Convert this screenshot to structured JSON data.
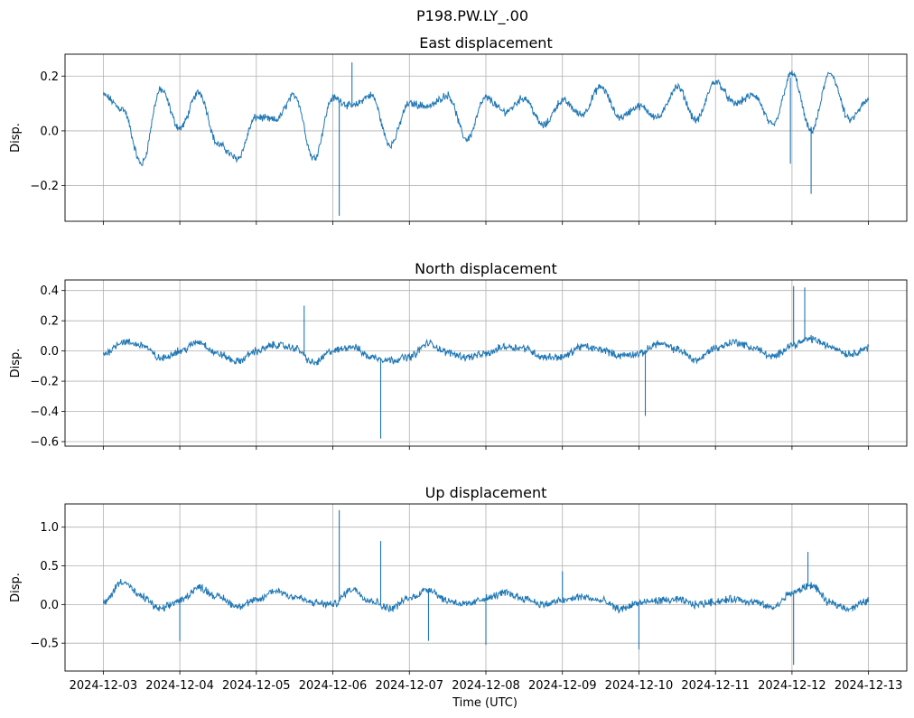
{
  "suptitle": "P198.PW.LY_.00",
  "xlabel": "Time (UTC)",
  "x_ticks": [
    "2024-12-03",
    "2024-12-04",
    "2024-12-05",
    "2024-12-06",
    "2024-12-07",
    "2024-12-08",
    "2024-12-09",
    "2024-12-10",
    "2024-12-11",
    "2024-12-12",
    "2024-12-13"
  ],
  "colors": {
    "line": "#1f77b4",
    "grid": "#b0b0b0",
    "axes": "#000000"
  },
  "chart_data": [
    {
      "type": "line",
      "title": "East displacement",
      "ylabel": "Disp.",
      "ylim": [
        -0.33,
        0.28
      ],
      "yticks": [
        -0.2,
        0.0,
        0.2
      ],
      "ytick_labels": [
        "−0.2",
        "0.0",
        "0.2"
      ],
      "xlim": [
        "2024-12-02T12:00",
        "2024-12-13T12:00"
      ],
      "grid": true,
      "series": [
        {
          "x": [
            "2024-12-03T00:00",
            "2024-12-03T06:00",
            "2024-12-03T12:00",
            "2024-12-03T18:00",
            "2024-12-04T00:00",
            "2024-12-04T06:00",
            "2024-12-04T12:00",
            "2024-12-04T18:00",
            "2024-12-05T00:00",
            "2024-12-05T06:00",
            "2024-12-05T12:00",
            "2024-12-05T18:00",
            "2024-12-06T00:00",
            "2024-12-06T06:00",
            "2024-12-06T12:00",
            "2024-12-06T18:00",
            "2024-12-07T00:00",
            "2024-12-07T06:00",
            "2024-12-07T12:00",
            "2024-12-07T18:00",
            "2024-12-08T00:00",
            "2024-12-08T06:00",
            "2024-12-08T12:00",
            "2024-12-08T18:00",
            "2024-12-09T00:00",
            "2024-12-09T06:00",
            "2024-12-09T12:00",
            "2024-12-09T18:00",
            "2024-12-10T00:00",
            "2024-12-10T06:00",
            "2024-12-10T12:00",
            "2024-12-10T18:00",
            "2024-12-11T00:00",
            "2024-12-11T06:00",
            "2024-12-11T12:00",
            "2024-12-11T18:00",
            "2024-12-12T00:00",
            "2024-12-12T06:00",
            "2024-12-12T12:00",
            "2024-12-12T18:00",
            "2024-12-13T00:00"
          ],
          "y": [
            0.13,
            0.08,
            -0.12,
            0.15,
            0.01,
            0.14,
            -0.05,
            -0.1,
            0.05,
            0.04,
            0.13,
            -0.1,
            0.12,
            0.09,
            0.13,
            -0.05,
            0.1,
            0.09,
            0.13,
            -0.03,
            0.12,
            0.07,
            0.12,
            0.02,
            0.11,
            0.06,
            0.16,
            0.05,
            0.09,
            0.05,
            0.16,
            0.04,
            0.18,
            0.1,
            0.13,
            0.02,
            0.21,
            0.0,
            0.21,
            0.04,
            0.11
          ]
        }
      ],
      "spikes": [
        {
          "x": "2024-12-06T02:00",
          "y": -0.31
        },
        {
          "x": "2024-12-06T06:00",
          "y": 0.25
        },
        {
          "x": "2024-12-12T06:00",
          "y": -0.23
        },
        {
          "x": "2024-12-11T23:30",
          "y": -0.12
        }
      ]
    },
    {
      "type": "line",
      "title": "North displacement",
      "ylabel": "Disp.",
      "ylim": [
        -0.63,
        0.47
      ],
      "yticks": [
        -0.6,
        -0.4,
        -0.2,
        0.0,
        0.2,
        0.4
      ],
      "ytick_labels": [
        "−0.6",
        "−0.4",
        "−0.2",
        "0.0",
        "0.2",
        "0.4"
      ],
      "xlim": [
        "2024-12-02T12:00",
        "2024-12-13T12:00"
      ],
      "grid": true,
      "series": [
        {
          "x": [
            "2024-12-03T00:00",
            "2024-12-03T06:00",
            "2024-12-03T12:00",
            "2024-12-03T18:00",
            "2024-12-04T00:00",
            "2024-12-04T06:00",
            "2024-12-04T12:00",
            "2024-12-04T18:00",
            "2024-12-05T00:00",
            "2024-12-05T06:00",
            "2024-12-05T12:00",
            "2024-12-05T18:00",
            "2024-12-06T00:00",
            "2024-12-06T06:00",
            "2024-12-06T12:00",
            "2024-12-06T18:00",
            "2024-12-07T00:00",
            "2024-12-07T06:00",
            "2024-12-07T12:00",
            "2024-12-07T18:00",
            "2024-12-08T00:00",
            "2024-12-08T06:00",
            "2024-12-08T12:00",
            "2024-12-08T18:00",
            "2024-12-09T00:00",
            "2024-12-09T06:00",
            "2024-12-09T12:00",
            "2024-12-09T18:00",
            "2024-12-10T00:00",
            "2024-12-10T06:00",
            "2024-12-10T12:00",
            "2024-12-10T18:00",
            "2024-12-11T00:00",
            "2024-12-11T06:00",
            "2024-12-11T12:00",
            "2024-12-11T18:00",
            "2024-12-12T00:00",
            "2024-12-12T06:00",
            "2024-12-12T12:00",
            "2024-12-12T18:00",
            "2024-12-13T00:00"
          ],
          "y": [
            -0.02,
            0.06,
            0.04,
            -0.05,
            0.0,
            0.06,
            -0.02,
            -0.07,
            0.0,
            0.04,
            0.02,
            -0.08,
            0.0,
            0.03,
            -0.04,
            -0.06,
            -0.04,
            0.05,
            -0.01,
            -0.04,
            -0.02,
            0.03,
            0.02,
            -0.04,
            -0.04,
            0.03,
            0.01,
            -0.03,
            -0.02,
            0.05,
            0.01,
            -0.06,
            0.02,
            0.06,
            0.02,
            -0.04,
            0.04,
            0.08,
            0.03,
            -0.02,
            0.02
          ]
        }
      ],
      "spikes": [
        {
          "x": "2024-12-05T15:00",
          "y": 0.3
        },
        {
          "x": "2024-12-06T15:00",
          "y": -0.58
        },
        {
          "x": "2024-12-10T02:00",
          "y": -0.43
        },
        {
          "x": "2024-12-12T00:30",
          "y": 0.43
        },
        {
          "x": "2024-12-12T04:00",
          "y": 0.42
        }
      ]
    },
    {
      "type": "line",
      "title": "Up displacement",
      "ylabel": "Disp.",
      "ylim": [
        -0.86,
        1.3
      ],
      "yticks": [
        -0.5,
        0.0,
        0.5,
        1.0
      ],
      "ytick_labels": [
        "−0.5",
        "0.0",
        "0.5",
        "1.0"
      ],
      "xlim": [
        "2024-12-02T12:00",
        "2024-12-13T12:00"
      ],
      "grid": true,
      "series": [
        {
          "x": [
            "2024-12-03T00:00",
            "2024-12-03T06:00",
            "2024-12-03T12:00",
            "2024-12-03T18:00",
            "2024-12-04T00:00",
            "2024-12-04T06:00",
            "2024-12-04T12:00",
            "2024-12-04T18:00",
            "2024-12-05T00:00",
            "2024-12-05T06:00",
            "2024-12-05T12:00",
            "2024-12-05T18:00",
            "2024-12-06T00:00",
            "2024-12-06T06:00",
            "2024-12-06T12:00",
            "2024-12-06T18:00",
            "2024-12-07T00:00",
            "2024-12-07T06:00",
            "2024-12-07T12:00",
            "2024-12-07T18:00",
            "2024-12-08T00:00",
            "2024-12-08T06:00",
            "2024-12-08T12:00",
            "2024-12-08T18:00",
            "2024-12-09T00:00",
            "2024-12-09T06:00",
            "2024-12-09T12:00",
            "2024-12-09T18:00",
            "2024-12-10T00:00",
            "2024-12-10T06:00",
            "2024-12-10T12:00",
            "2024-12-10T18:00",
            "2024-12-11T00:00",
            "2024-12-11T06:00",
            "2024-12-11T12:00",
            "2024-12-11T18:00",
            "2024-12-12T00:00",
            "2024-12-12T06:00",
            "2024-12-12T12:00",
            "2024-12-12T18:00",
            "2024-12-13T00:00"
          ],
          "y": [
            0.02,
            0.3,
            0.1,
            -0.06,
            0.05,
            0.22,
            0.1,
            -0.02,
            0.05,
            0.18,
            0.1,
            0.02,
            0.0,
            0.2,
            0.05,
            -0.05,
            0.08,
            0.2,
            0.05,
            0.0,
            0.08,
            0.15,
            0.08,
            0.0,
            0.05,
            0.1,
            0.05,
            -0.06,
            0.02,
            0.05,
            0.06,
            0.0,
            0.04,
            0.07,
            0.03,
            -0.04,
            0.15,
            0.25,
            0.02,
            -0.05,
            0.05
          ]
        }
      ],
      "spikes": [
        {
          "x": "2024-12-06T02:00",
          "y": 1.22
        },
        {
          "x": "2024-12-06T15:00",
          "y": 0.82
        },
        {
          "x": "2024-12-04T00:00",
          "y": -0.47
        },
        {
          "x": "2024-12-07T06:00",
          "y": -0.47
        },
        {
          "x": "2024-12-08T00:00",
          "y": -0.52
        },
        {
          "x": "2024-12-10T00:00",
          "y": -0.58
        },
        {
          "x": "2024-12-12T00:30",
          "y": -0.78
        },
        {
          "x": "2024-12-12T05:00",
          "y": 0.68
        },
        {
          "x": "2024-12-09T00:00",
          "y": 0.43
        }
      ]
    }
  ]
}
